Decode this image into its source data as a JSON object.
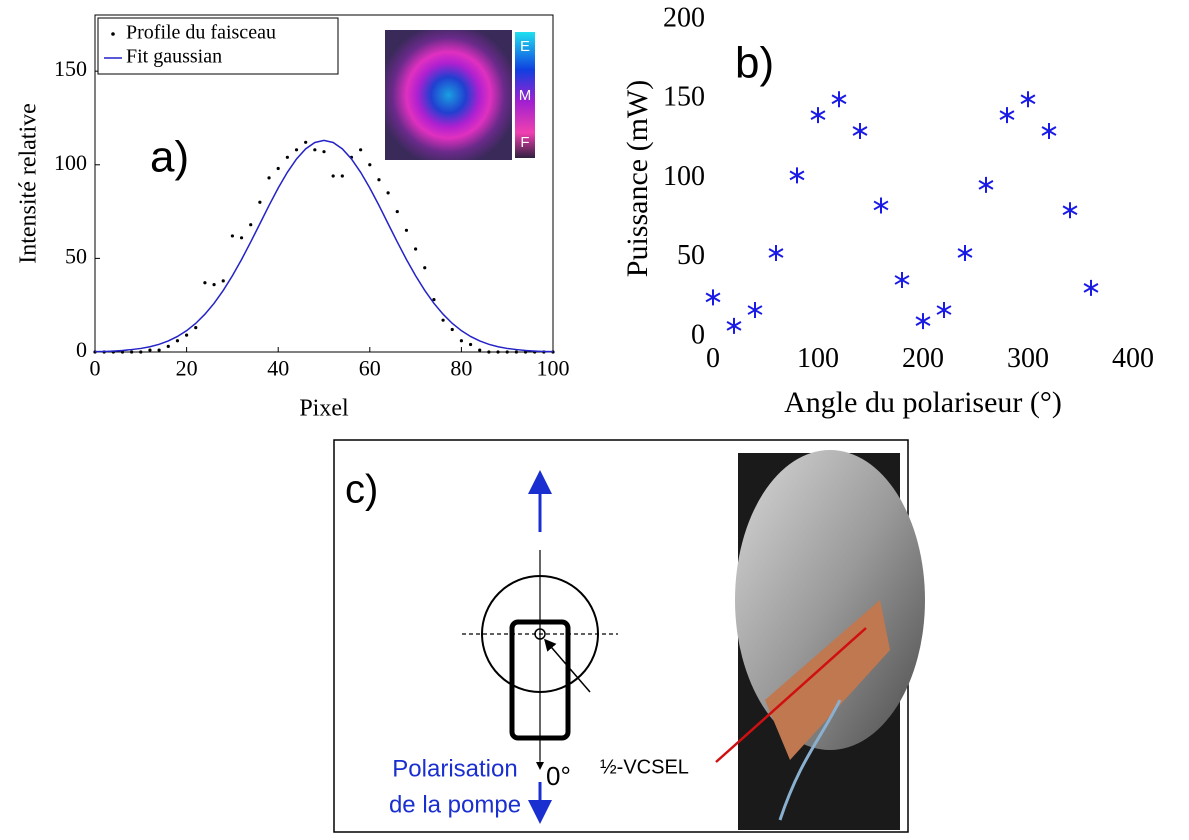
{
  "chart_data": [
    {
      "type": "line",
      "annotation": "a)",
      "xlabel": "Pixel",
      "ylabel": "Intensité relative",
      "x": [
        0,
        2,
        4,
        6,
        8,
        10,
        12,
        14,
        16,
        18,
        20,
        22,
        24,
        26,
        28,
        30,
        32,
        34,
        36,
        38,
        40,
        42,
        44,
        46,
        48,
        50,
        52,
        54,
        56,
        58,
        60,
        62,
        64,
        66,
        68,
        70,
        72,
        74,
        76,
        78,
        80,
        82,
        84,
        86,
        88,
        90,
        92,
        94,
        96,
        98,
        100
      ],
      "series": [
        {
          "name": "Profile du faisceau",
          "color": "#000000",
          "marker": "dot",
          "values": [
            0,
            0,
            0,
            0,
            0,
            0,
            1,
            1,
            3,
            6,
            9,
            13,
            37,
            36,
            38,
            62,
            61,
            68,
            80,
            93,
            98,
            104,
            108,
            112,
            108,
            107,
            94,
            94,
            104,
            108,
            100,
            92,
            85,
            75,
            65,
            55,
            45,
            28,
            17,
            12,
            6,
            4,
            1,
            0,
            0,
            0,
            0,
            0,
            0,
            0,
            0
          ]
        },
        {
          "name": "Fit gaussian",
          "color": "#2323c8",
          "marker": "line",
          "values": [
            0.2,
            0.3,
            0.5,
            0.8,
            1.3,
            1.9,
            2.8,
            4.1,
            5.9,
            8.3,
            11.4,
            15.3,
            20.2,
            26.0,
            32.9,
            40.7,
            49.4,
            58.8,
            68.5,
            78.3,
            87.6,
            96.0,
            103.1,
            108.5,
            111.9,
            113,
            111.9,
            108.5,
            103.1,
            96.0,
            87.6,
            78.3,
            68.5,
            58.8,
            49.4,
            40.7,
            32.9,
            26.0,
            20.2,
            15.3,
            11.4,
            8.3,
            5.9,
            4.1,
            2.8,
            1.9,
            1.3,
            0.8,
            0.5,
            0.3,
            0.2
          ]
        }
      ],
      "xlim": [
        0,
        100
      ],
      "xticks": [
        0,
        20,
        40,
        60,
        80,
        100
      ],
      "ylim": [
        0,
        180
      ],
      "yticks": [
        0,
        50,
        100,
        150
      ],
      "frame": true,
      "legend": "upper left",
      "inset": {
        "labels": [
          "E",
          "M",
          "F"
        ]
      }
    },
    {
      "type": "scatter",
      "annotation": "b)",
      "xlabel": "Angle du polariseur (°)",
      "ylabel": "Puissance (mW)",
      "x": [
        0,
        20,
        40,
        60,
        80,
        100,
        120,
        140,
        160,
        180,
        200,
        220,
        240,
        260,
        280,
        300,
        320,
        340,
        360
      ],
      "values": [
        25,
        7,
        17,
        53,
        102,
        140,
        150,
        130,
        83,
        36,
        10,
        17,
        53,
        96,
        140,
        150,
        130,
        80,
        31
      ],
      "color": "#1a1ae6",
      "marker": "asterisk",
      "xlim": [
        0,
        400
      ],
      "xticks": [
        0,
        100,
        200,
        300,
        400
      ],
      "ylim": [
        0,
        200
      ],
      "yticks": [
        0,
        50,
        100,
        150,
        200
      ],
      "frame": false
    }
  ],
  "diagram": {
    "label": "c)",
    "device": "½-VCSEL",
    "angle": "0°",
    "polarisation": [
      "Polarisation",
      "de la pompe"
    ]
  }
}
